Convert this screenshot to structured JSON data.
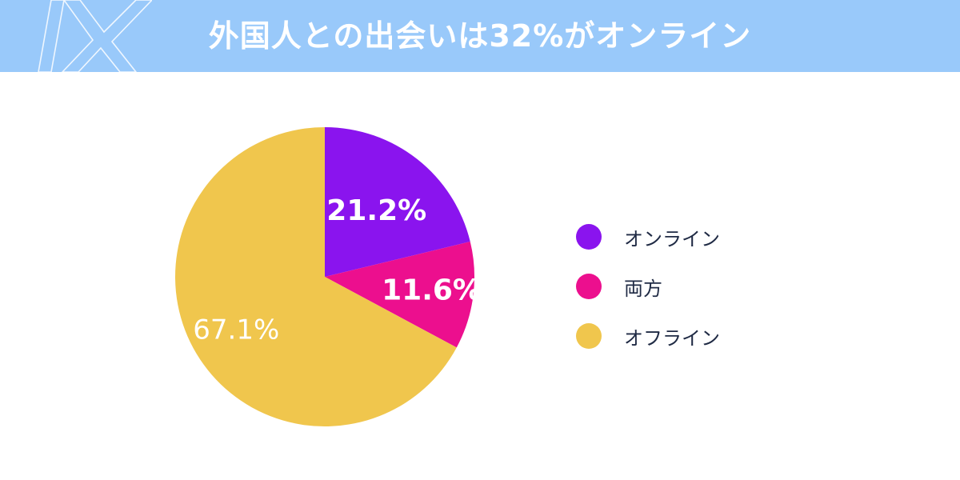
{
  "header": {
    "title": "外国人との出会いは32%がオンライン",
    "logo_icon": "x-logo-icon",
    "background": "#99c9fa"
  },
  "chart_data": {
    "type": "pie",
    "title": "外国人との出会いは32%がオンライン",
    "slices": [
      {
        "label": "オンライン",
        "value": 21.2,
        "display": "21.2%",
        "color": "#8a14ee"
      },
      {
        "label": "両方",
        "value": 11.6,
        "display": "11.6%",
        "color": "#ec0f8e"
      },
      {
        "label": "オフライン",
        "value": 67.1,
        "display": "67.1%",
        "color": "#f0c64d"
      }
    ],
    "start_angle_deg": 0,
    "direction": "clockwise",
    "legend_position": "right"
  }
}
